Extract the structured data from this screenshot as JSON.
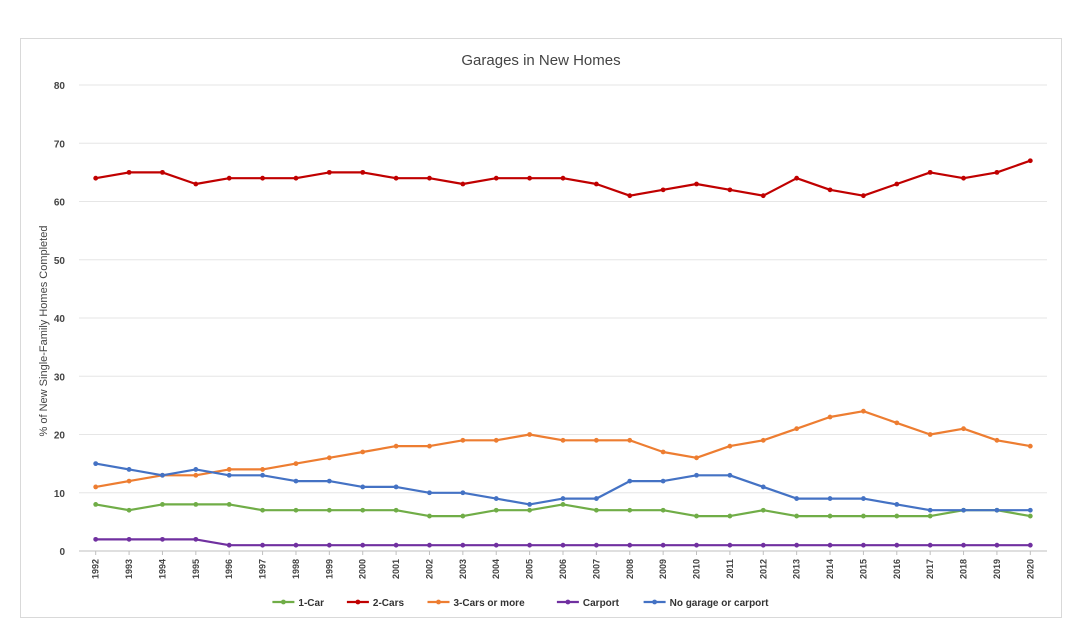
{
  "chart_data": {
    "type": "line",
    "title": "Garages in New Homes",
    "xlabel": "",
    "ylabel": "% of New Single-Family Homes Completed",
    "ylim": [
      0,
      80
    ],
    "yticks": [
      0,
      10,
      20,
      30,
      40,
      50,
      60,
      70,
      80
    ],
    "grid": true,
    "legend_position": "bottom",
    "x": [
      "1992",
      "1993",
      "1994",
      "1995",
      "1996",
      "1997",
      "1998",
      "1999",
      "2000",
      "2001",
      "2002",
      "2003",
      "2004",
      "2005",
      "2006",
      "2007",
      "2008",
      "2009",
      "2010",
      "2011",
      "2012",
      "2013",
      "2014",
      "2015",
      "2016",
      "2017",
      "2018",
      "2019",
      "2020"
    ],
    "series": [
      {
        "name": "1-Car",
        "color": "#70ad47",
        "values": [
          8,
          7,
          8,
          8,
          8,
          7,
          7,
          7,
          7,
          7,
          6,
          6,
          7,
          7,
          8,
          7,
          7,
          7,
          6,
          6,
          7,
          6,
          6,
          6,
          6,
          6,
          7,
          7,
          6
        ]
      },
      {
        "name": "2-Cars",
        "color": "#c00000",
        "values": [
          64,
          65,
          65,
          63,
          64,
          64,
          64,
          65,
          65,
          64,
          64,
          63,
          64,
          64,
          64,
          63,
          61,
          62,
          63,
          62,
          61,
          64,
          62,
          61,
          63,
          65,
          64,
          65,
          67
        ]
      },
      {
        "name": "3-Cars or more",
        "color": "#ed7d31",
        "values": [
          11,
          12,
          13,
          13,
          14,
          14,
          15,
          16,
          17,
          18,
          18,
          19,
          19,
          20,
          19,
          19,
          19,
          17,
          16,
          18,
          19,
          21,
          23,
          24,
          22,
          20,
          21,
          19,
          18
        ]
      },
      {
        "name": "Carport",
        "color": "#7030a0",
        "values": [
          2,
          2,
          2,
          2,
          1,
          1,
          1,
          1,
          1,
          1,
          1,
          1,
          1,
          1,
          1,
          1,
          1,
          1,
          1,
          1,
          1,
          1,
          1,
          1,
          1,
          1,
          1,
          1,
          1
        ]
      },
      {
        "name": "No garage or carport",
        "color": "#4472c4",
        "values": [
          15,
          14,
          13,
          14,
          13,
          13,
          12,
          12,
          11,
          11,
          10,
          10,
          9,
          8,
          9,
          9,
          12,
          12,
          13,
          13,
          11,
          9,
          9,
          9,
          8,
          7,
          7,
          7,
          7
        ]
      }
    ]
  }
}
